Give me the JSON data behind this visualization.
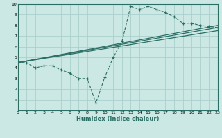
{
  "xlabel": "Humidex (Indice chaleur)",
  "xlim": [
    0,
    23
  ],
  "ylim": [
    0,
    10
  ],
  "xticks": [
    0,
    1,
    2,
    3,
    4,
    5,
    6,
    7,
    8,
    9,
    10,
    11,
    12,
    13,
    14,
    15,
    16,
    17,
    18,
    19,
    20,
    21,
    22,
    23
  ],
  "yticks": [
    1,
    2,
    3,
    4,
    5,
    6,
    7,
    8,
    9,
    10
  ],
  "bg_color": "#cce8e4",
  "grid_color": "#aacfcc",
  "line_color": "#2a6e64",
  "line1_x": [
    0,
    1,
    2,
    3,
    4,
    5,
    6,
    7,
    8,
    9,
    10,
    11,
    12,
    13,
    14,
    15,
    16,
    17,
    18,
    19,
    20,
    21,
    22,
    23
  ],
  "line1_y": [
    4.5,
    4.5,
    4.0,
    4.2,
    4.2,
    3.8,
    3.5,
    3.0,
    3.0,
    0.7,
    3.1,
    5.0,
    6.5,
    9.8,
    9.5,
    9.8,
    9.5,
    9.2,
    8.8,
    8.2,
    8.2,
    8.0,
    7.9,
    7.8
  ],
  "line2_x": [
    0,
    23
  ],
  "line2_y": [
    4.5,
    8.0
  ],
  "line3_x": [
    0,
    23
  ],
  "line3_y": [
    4.5,
    7.8
  ],
  "line4_x": [
    0,
    23
  ],
  "line4_y": [
    4.5,
    7.5
  ]
}
